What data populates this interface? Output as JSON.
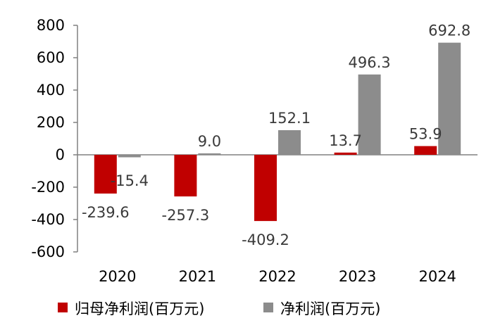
{
  "chart_data": {
    "type": "bar",
    "categories": [
      "2020",
      "2021",
      "2022",
      "2023",
      "2024"
    ],
    "series": [
      {
        "name": "归母净利润(百万元)",
        "color": "#c00000",
        "values": [
          -239.6,
          -257.3,
          -409.2,
          13.7,
          53.9
        ]
      },
      {
        "name": "净利润(百万元)",
        "color": "#8c8c8c",
        "values": [
          -15.4,
          9.0,
          152.1,
          496.3,
          692.8
        ]
      }
    ],
    "data_labels": [
      [
        "-239.6",
        "-257.3",
        "-409.2",
        "13.7",
        "53.9"
      ],
      [
        "-15.4",
        "9.0",
        "152.1",
        "496.3",
        "692.8"
      ]
    ],
    "y_ticks": [
      "800",
      "600",
      "400",
      "200",
      "0",
      "-200",
      "-400",
      "-600"
    ],
    "ylim": [
      -600,
      800
    ],
    "grid": false,
    "legend_position": "bottom"
  }
}
